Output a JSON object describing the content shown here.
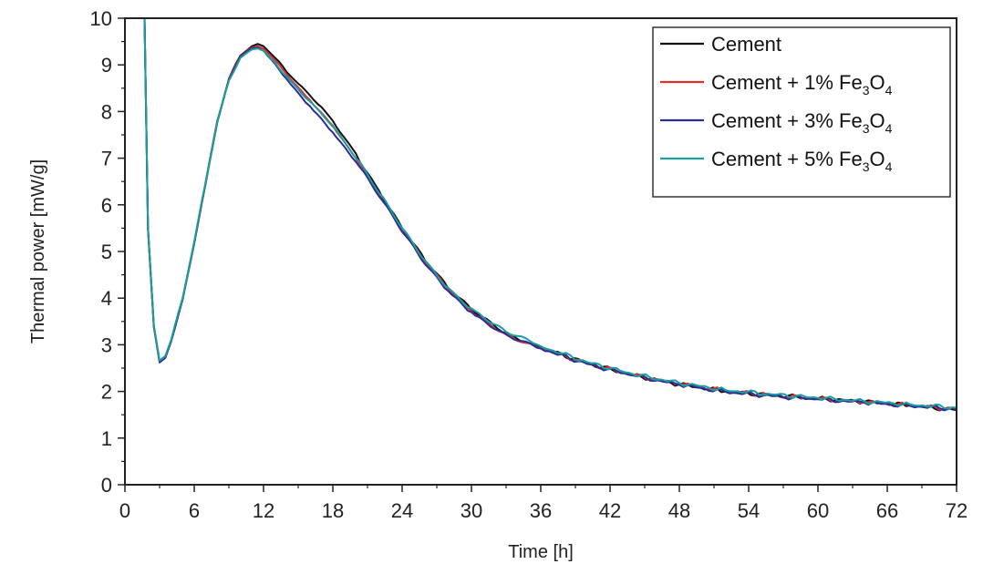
{
  "chart_data": {
    "type": "line",
    "title": "",
    "xlabel": "Time [h]",
    "ylabel": "Thermal power [mW/g]",
    "xlim": [
      0,
      72
    ],
    "ylim": [
      0,
      10
    ],
    "xticks": [
      0,
      6,
      12,
      18,
      24,
      30,
      36,
      42,
      48,
      54,
      60,
      66,
      72
    ],
    "yticks": [
      0,
      1,
      2,
      3,
      4,
      5,
      6,
      7,
      8,
      9,
      10
    ],
    "x_tick_labels": [
      "0",
      "6",
      "12",
      "18",
      "24",
      "30",
      "36",
      "42",
      "48",
      "54",
      "60",
      "66",
      "72"
    ],
    "y_tick_labels": [
      "0",
      "1",
      "2",
      "3",
      "4",
      "5",
      "6",
      "7",
      "8",
      "9",
      "10"
    ],
    "grid": false,
    "legend_position": "top-right",
    "x": [
      1.7,
      2.0,
      2.5,
      3.0,
      3.5,
      4,
      5,
      6,
      7,
      8,
      9,
      10,
      11,
      11.5,
      12,
      13,
      14,
      15,
      16,
      17,
      18,
      20,
      22,
      24,
      26,
      28,
      30,
      33,
      36,
      40,
      44,
      48,
      52,
      56,
      60,
      64,
      68,
      72
    ],
    "series": [
      {
        "name": "Cement",
        "color": "#111111",
        "values": [
          10.0,
          5.5,
          3.4,
          2.65,
          2.75,
          3.1,
          4.0,
          5.2,
          6.5,
          7.8,
          8.7,
          9.2,
          9.4,
          9.45,
          9.4,
          9.15,
          8.85,
          8.6,
          8.35,
          8.1,
          7.8,
          7.1,
          6.3,
          5.5,
          4.8,
          4.2,
          3.75,
          3.25,
          2.95,
          2.6,
          2.35,
          2.15,
          2.0,
          1.92,
          1.85,
          1.78,
          1.7,
          1.6
        ]
      },
      {
        "name": "Cement + 1% Fe",
        "name_sub_3": "3",
        "name_mid": "O",
        "name_sub_4": "4",
        "color": "#e03030",
        "values": [
          10.0,
          5.45,
          3.38,
          2.63,
          2.73,
          3.08,
          3.98,
          5.18,
          6.48,
          7.78,
          8.68,
          9.18,
          9.37,
          9.4,
          9.35,
          9.1,
          8.8,
          8.52,
          8.25,
          7.98,
          7.7,
          7.0,
          6.22,
          5.45,
          4.75,
          4.18,
          3.72,
          3.23,
          2.93,
          2.6,
          2.35,
          2.16,
          2.01,
          1.92,
          1.84,
          1.77,
          1.7,
          1.62
        ]
      },
      {
        "name": "Cement + 3% Fe",
        "name_sub_3": "3",
        "name_mid": "O",
        "name_sub_4": "4",
        "color": "#2b2b9c",
        "values": [
          10.0,
          5.5,
          3.4,
          2.62,
          2.72,
          3.07,
          3.97,
          5.17,
          6.47,
          7.77,
          8.67,
          9.17,
          9.35,
          9.37,
          9.3,
          9.02,
          8.7,
          8.4,
          8.12,
          7.85,
          7.55,
          6.92,
          6.18,
          5.42,
          4.72,
          4.15,
          3.7,
          3.22,
          2.92,
          2.59,
          2.34,
          2.14,
          1.99,
          1.9,
          1.83,
          1.76,
          1.69,
          1.62
        ]
      },
      {
        "name": "Cement + 5% Fe",
        "name_sub_3": "3",
        "name_mid": "O",
        "name_sub_4": "4",
        "color": "#1a9e9e",
        "values": [
          10.0,
          5.5,
          3.42,
          2.66,
          2.76,
          3.1,
          4.0,
          5.2,
          6.5,
          7.78,
          8.66,
          9.15,
          9.33,
          9.35,
          9.3,
          9.05,
          8.75,
          8.48,
          8.22,
          7.96,
          7.68,
          7.0,
          6.25,
          5.5,
          4.8,
          4.22,
          3.78,
          3.28,
          2.97,
          2.63,
          2.37,
          2.18,
          2.03,
          1.94,
          1.86,
          1.79,
          1.72,
          1.65
        ]
      }
    ]
  }
}
